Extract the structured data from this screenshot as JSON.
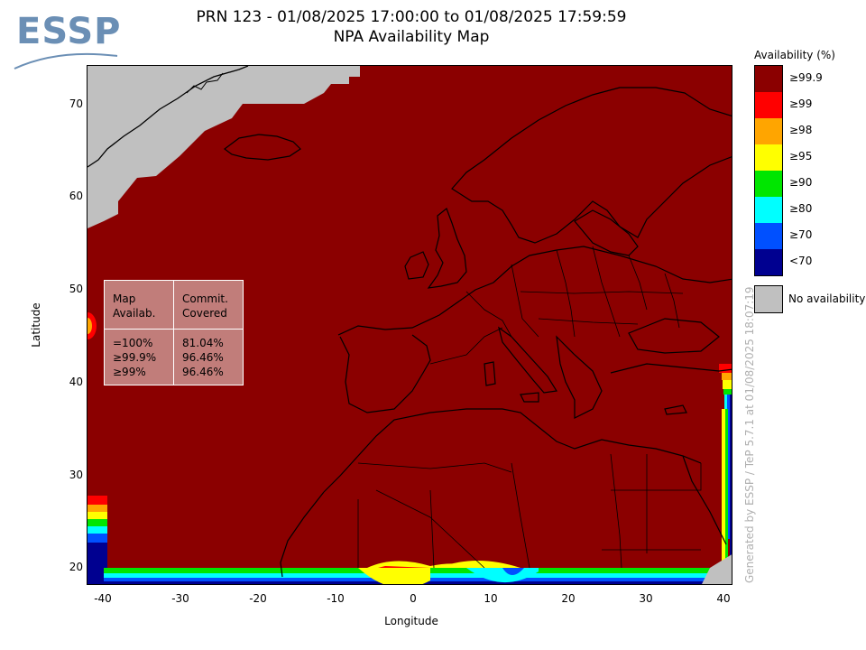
{
  "logo": {
    "text": "ESSP"
  },
  "title": {
    "line1": "PRN 123 - 01/08/2025 17:00:00 to 01/08/2025 17:59:59",
    "line2": "NPA Availability Map"
  },
  "axes": {
    "xlabel": "Longitude",
    "ylabel": "Latitude",
    "xticks": [
      "-40",
      "-30",
      "-20",
      "-10",
      "0",
      "10",
      "20",
      "30",
      "40"
    ],
    "yticks": [
      "70",
      "60",
      "50",
      "40",
      "30",
      "20"
    ],
    "xlim": [
      -42,
      41
    ],
    "ylim": [
      18,
      74
    ]
  },
  "stats_table": {
    "col1_header": "Map\nAvailab.",
    "col2_header": "Commit.\nCovered",
    "col1_values": "=100%\n≥99.9%\n≥99%",
    "col2_values": "81.04%\n96.46%\n96.46%"
  },
  "legend": {
    "title": "Availability (%)",
    "items": [
      {
        "label": "≥99.9",
        "color": "#8b0000"
      },
      {
        "label": "≥99",
        "color": "#ff0000"
      },
      {
        "label": "≥98",
        "color": "#ffa500"
      },
      {
        "label": "≥95",
        "color": "#ffff00"
      },
      {
        "label": "≥90",
        "color": "#00e600"
      },
      {
        "label": "≥80",
        "color": "#00ffff"
      },
      {
        "label": "≥70",
        "color": "#0050ff"
      },
      {
        "label": "<70",
        "color": "#000090"
      }
    ],
    "no_data_label": "No availability",
    "no_data_color": "#c0c0c0"
  },
  "watermark": "Generated by ESSP / TeP 5.7.1 at 01/08/2025 18:07:19"
}
